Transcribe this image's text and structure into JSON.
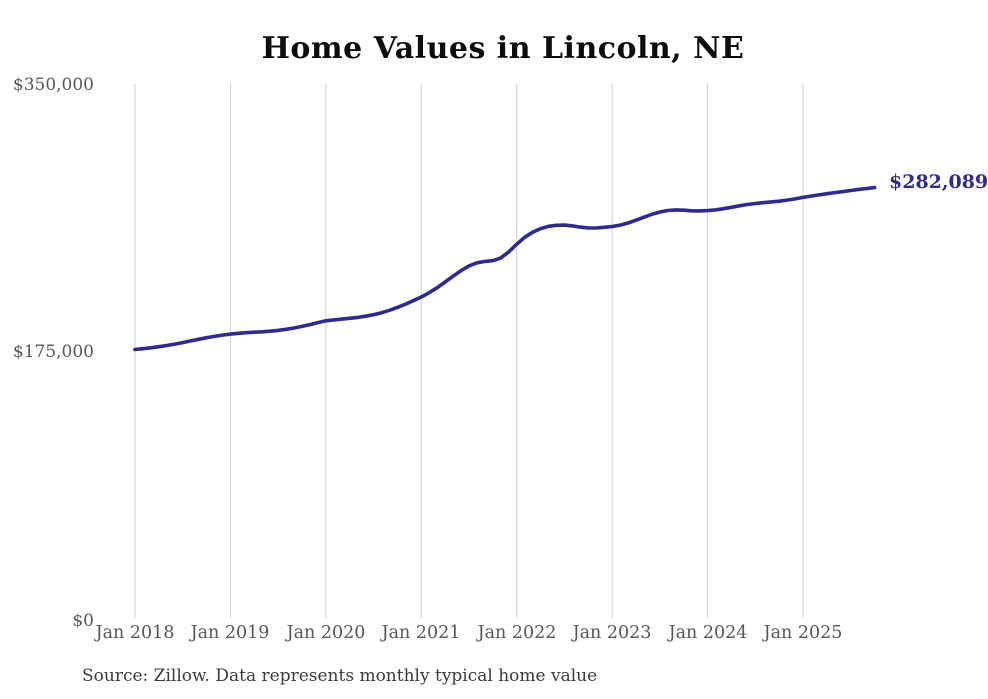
{
  "title": "Home Values in Lincoln, NE",
  "source": "Source: Zillow. Data represents monthly typical home value",
  "colors": {
    "line": "#2f2b8e",
    "end_label": "#2f2b8e",
    "gridline": "#cfcfcf",
    "axis_label": "#56575a",
    "source_text": "#3a3a3a",
    "title": "#0d0d0d",
    "background": "#ffffff"
  },
  "chart_data": {
    "type": "line",
    "title": "Home Values in Lincoln, NE",
    "xlabel": "",
    "ylabel": "",
    "ylim": [
      0,
      350000
    ],
    "y_tick_labels": [
      "$0",
      "$175,000",
      "$350,000"
    ],
    "x_tick_labels": [
      "Jan 2018",
      "Jan 2019",
      "Jan 2020",
      "Jan 2021",
      "Jan 2022",
      "Jan 2023",
      "Jan 2024",
      "Jan 2025"
    ],
    "grid": "vertical-only",
    "legend_position": "none",
    "end_annotation": "$282,089",
    "final_value": 282089,
    "series": [
      {
        "name": "Monthly typical home value",
        "frequency": "monthly",
        "months": [
          "2018-01",
          "2018-02",
          "2018-03",
          "2018-04",
          "2018-05",
          "2018-06",
          "2018-07",
          "2018-08",
          "2018-09",
          "2018-10",
          "2018-11",
          "2018-12",
          "2019-01",
          "2019-02",
          "2019-03",
          "2019-04",
          "2019-05",
          "2019-06",
          "2019-07",
          "2019-08",
          "2019-09",
          "2019-10",
          "2019-11",
          "2019-12",
          "2020-01",
          "2020-02",
          "2020-03",
          "2020-04",
          "2020-05",
          "2020-06",
          "2020-07",
          "2020-08",
          "2020-09",
          "2020-10",
          "2020-11",
          "2020-12",
          "2021-01",
          "2021-02",
          "2021-03",
          "2021-04",
          "2021-05",
          "2021-06",
          "2021-07",
          "2021-08",
          "2021-09",
          "2021-10",
          "2021-11",
          "2021-12",
          "2022-01",
          "2022-02",
          "2022-03",
          "2022-04",
          "2022-05",
          "2022-06",
          "2022-07",
          "2022-08",
          "2022-09",
          "2022-10",
          "2022-11",
          "2022-12",
          "2023-01",
          "2023-02",
          "2023-03",
          "2023-04",
          "2023-05",
          "2023-06",
          "2023-07",
          "2023-08",
          "2023-09",
          "2023-10",
          "2023-11",
          "2023-12",
          "2024-01",
          "2024-02",
          "2024-03",
          "2024-04",
          "2024-05",
          "2024-06",
          "2024-07",
          "2024-08",
          "2024-09",
          "2024-10",
          "2024-11",
          "2024-12",
          "2025-01",
          "2025-02",
          "2025-03",
          "2025-04",
          "2025-05",
          "2025-06",
          "2025-07",
          "2025-08",
          "2025-09",
          "2025-10"
        ],
        "values": [
          176000,
          176500,
          177100,
          177800,
          178600,
          179500,
          180500,
          181600,
          182700,
          183700,
          184600,
          185400,
          186100,
          186600,
          187000,
          187300,
          187600,
          188000,
          188500,
          189200,
          190100,
          191100,
          192300,
          193600,
          194800,
          195400,
          195900,
          196400,
          197000,
          197800,
          198800,
          200100,
          201700,
          203600,
          205700,
          208000,
          210400,
          213200,
          216500,
          220200,
          224000,
          227700,
          230800,
          232800,
          233700,
          234200,
          236000,
          240000,
          245000,
          249500,
          252800,
          255200,
          256700,
          257400,
          257500,
          257000,
          256200,
          255700,
          255600,
          256100,
          256600,
          257500,
          258900,
          260700,
          262700,
          264600,
          266100,
          267100,
          267500,
          267300,
          266900,
          266800,
          267000,
          267500,
          268300,
          269200,
          270200,
          271000,
          271700,
          272200,
          272700,
          273200,
          273900,
          274700,
          275700,
          276500,
          277300,
          278100,
          278800,
          279500,
          280200,
          280900,
          281500,
          282089
        ]
      }
    ]
  }
}
